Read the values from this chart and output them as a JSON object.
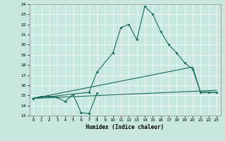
{
  "xlabel": "Humidex (Indice chaleur)",
  "xlim": [
    -0.5,
    23.5
  ],
  "ylim": [
    13,
    24
  ],
  "yticks": [
    13,
    14,
    15,
    16,
    17,
    18,
    19,
    20,
    21,
    22,
    23,
    24
  ],
  "xticks": [
    0,
    1,
    2,
    3,
    4,
    5,
    6,
    7,
    8,
    9,
    10,
    11,
    12,
    13,
    14,
    15,
    16,
    17,
    18,
    19,
    20,
    21,
    22,
    23
  ],
  "bg_color": "#c8e8df",
  "line_color": "#1a6b5a",
  "series1_x": [
    0,
    1,
    2,
    3,
    4,
    5,
    6,
    7,
    8
  ],
  "series1_y": [
    14.7,
    14.9,
    14.9,
    14.8,
    14.4,
    15.1,
    13.3,
    13.2,
    15.2
  ],
  "series2_x": [
    0,
    7,
    8,
    10,
    11,
    12,
    13,
    14,
    15,
    16,
    17,
    18,
    19,
    20,
    21,
    22,
    23
  ],
  "series2_y": [
    14.7,
    15.3,
    17.3,
    19.2,
    21.7,
    22.0,
    20.5,
    23.8,
    23.0,
    21.3,
    20.0,
    19.2,
    18.2,
    17.6,
    15.3,
    15.3,
    15.3
  ],
  "series3_x": [
    0,
    23
  ],
  "series3_y": [
    14.7,
    15.5
  ],
  "series4_x": [
    0,
    20,
    21,
    22,
    23
  ],
  "series4_y": [
    14.7,
    17.8,
    15.3,
    15.3,
    15.3
  ]
}
